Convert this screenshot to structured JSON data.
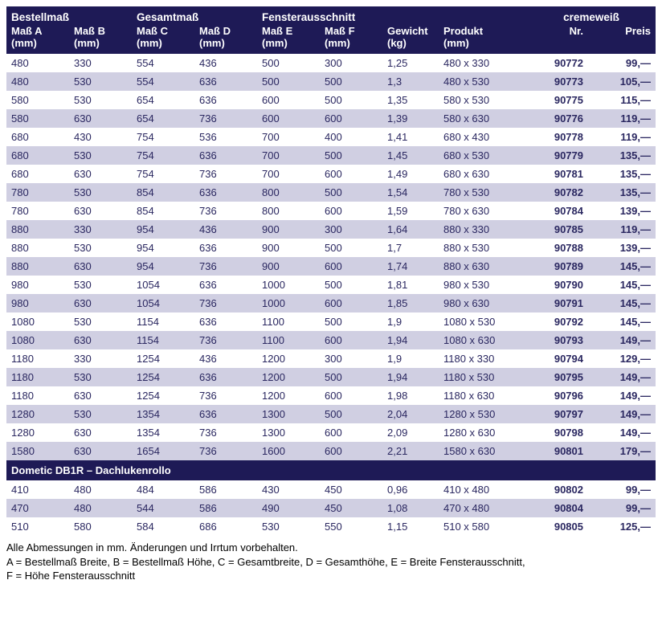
{
  "header_groups": {
    "bestellmass": "Bestellmaß",
    "gesamtmass": "Gesamtmaß",
    "fensterausschnitt": "Fensterausschnitt",
    "cremeweiss": "cremeweiß"
  },
  "columns": {
    "massA": "Maß A\n(mm)",
    "massB": "Maß B\n(mm)",
    "massC": "Maß C\n(mm)",
    "massD": "Maß D\n(mm)",
    "massE": "Maß E\n(mm)",
    "massF": "Maß F\n(mm)",
    "gewicht": "Gewicht\n(kg)",
    "produkt": "Produkt\n(mm)",
    "nr": "Nr.",
    "preis": "Preis"
  },
  "rows": [
    {
      "a": "480",
      "b": "330",
      "c": "554",
      "d": "436",
      "e": "500",
      "f": "300",
      "g": "1,25",
      "p": "480 x 330",
      "nr": "90772",
      "pr": "99,—"
    },
    {
      "a": "480",
      "b": "530",
      "c": "554",
      "d": "636",
      "e": "500",
      "f": "500",
      "g": "1,3",
      "p": "480 x 530",
      "nr": "90773",
      "pr": "105,—"
    },
    {
      "a": "580",
      "b": "530",
      "c": "654",
      "d": "636",
      "e": "600",
      "f": "500",
      "g": "1,35",
      "p": "580 x 530",
      "nr": "90775",
      "pr": "115,—"
    },
    {
      "a": "580",
      "b": "630",
      "c": "654",
      "d": "736",
      "e": "600",
      "f": "600",
      "g": "1,39",
      "p": "580 x 630",
      "nr": "90776",
      "pr": "119,—"
    },
    {
      "a": "680",
      "b": "430",
      "c": "754",
      "d": "536",
      "e": "700",
      "f": "400",
      "g": "1,41",
      "p": "680 x 430",
      "nr": "90778",
      "pr": "119,—"
    },
    {
      "a": "680",
      "b": "530",
      "c": "754",
      "d": "636",
      "e": "700",
      "f": "500",
      "g": "1,45",
      "p": "680 x 530",
      "nr": "90779",
      "pr": "135,—"
    },
    {
      "a": "680",
      "b": "630",
      "c": "754",
      "d": "736",
      "e": "700",
      "f": "600",
      "g": "1,49",
      "p": "680 x 630",
      "nr": "90781",
      "pr": "135,—"
    },
    {
      "a": "780",
      "b": "530",
      "c": "854",
      "d": "636",
      "e": "800",
      "f": "500",
      "g": "1,54",
      "p": "780 x 530",
      "nr": "90782",
      "pr": "135,—"
    },
    {
      "a": "780",
      "b": "630",
      "c": "854",
      "d": "736",
      "e": "800",
      "f": "600",
      "g": "1,59",
      "p": "780 x 630",
      "nr": "90784",
      "pr": "139,—"
    },
    {
      "a": "880",
      "b": "330",
      "c": "954",
      "d": "436",
      "e": "900",
      "f": "300",
      "g": "1,64",
      "p": "880 x 330",
      "nr": "90785",
      "pr": "119,—"
    },
    {
      "a": "880",
      "b": "530",
      "c": "954",
      "d": "636",
      "e": "900",
      "f": "500",
      "g": "1,7",
      "p": "880 x 530",
      "nr": "90788",
      "pr": "139,—"
    },
    {
      "a": "880",
      "b": "630",
      "c": "954",
      "d": "736",
      "e": "900",
      "f": "600",
      "g": "1,74",
      "p": "880 x 630",
      "nr": "90789",
      "pr": "145,—"
    },
    {
      "a": "980",
      "b": "530",
      "c": "1054",
      "d": "636",
      "e": "1000",
      "f": "500",
      "g": "1,81",
      "p": "980 x 530",
      "nr": "90790",
      "pr": "145,—"
    },
    {
      "a": "980",
      "b": "630",
      "c": "1054",
      "d": "736",
      "e": "1000",
      "f": "600",
      "g": "1,85",
      "p": "980 x 630",
      "nr": "90791",
      "pr": "145,—"
    },
    {
      "a": "1080",
      "b": "530",
      "c": "1154",
      "d": "636",
      "e": "1100",
      "f": "500",
      "g": "1,9",
      "p": "1080 x 530",
      "nr": "90792",
      "pr": "145,—"
    },
    {
      "a": "1080",
      "b": "630",
      "c": "1154",
      "d": "736",
      "e": "1100",
      "f": "600",
      "g": "1,94",
      "p": "1080 x 630",
      "nr": "90793",
      "pr": "149,—"
    },
    {
      "a": "1180",
      "b": "330",
      "c": "1254",
      "d": "436",
      "e": "1200",
      "f": "300",
      "g": "1,9",
      "p": "1180 x 330",
      "nr": "90794",
      "pr": "129,—"
    },
    {
      "a": "1180",
      "b": "530",
      "c": "1254",
      "d": "636",
      "e": "1200",
      "f": "500",
      "g": "1,94",
      "p": "1180 x 530",
      "nr": "90795",
      "pr": "149,—"
    },
    {
      "a": "1180",
      "b": "630",
      "c": "1254",
      "d": "736",
      "e": "1200",
      "f": "600",
      "g": "1,98",
      "p": "1180 x 630",
      "nr": "90796",
      "pr": "149,—"
    },
    {
      "a": "1280",
      "b": "530",
      "c": "1354",
      "d": "636",
      "e": "1300",
      "f": "500",
      "g": "2,04",
      "p": "1280 x 530",
      "nr": "90797",
      "pr": "149,—"
    },
    {
      "a": "1280",
      "b": "630",
      "c": "1354",
      "d": "736",
      "e": "1300",
      "f": "600",
      "g": "2,09",
      "p": "1280 x 630",
      "nr": "90798",
      "pr": "149,—"
    },
    {
      "a": "1580",
      "b": "630",
      "c": "1654",
      "d": "736",
      "e": "1600",
      "f": "600",
      "g": "2,21",
      "p": "1580 x 630",
      "nr": "90801",
      "pr": "179,—"
    }
  ],
  "section_title": "Dometic DB1R – Dachlukenrollo",
  "rows2": [
    {
      "a": "410",
      "b": "480",
      "c": "484",
      "d": "586",
      "e": "430",
      "f": "450",
      "g": "0,96",
      "p": "410 x 480",
      "nr": "90802",
      "pr": "99,—"
    },
    {
      "a": "470",
      "b": "480",
      "c": "544",
      "d": "586",
      "e": "490",
      "f": "450",
      "g": "1,08",
      "p": "470 x 480",
      "nr": "90804",
      "pr": "99,—"
    },
    {
      "a": "510",
      "b": "580",
      "c": "584",
      "d": "686",
      "e": "530",
      "f": "550",
      "g": "1,15",
      "p": "510 x 580",
      "nr": "90805",
      "pr": "125,—"
    }
  ],
  "footnotes": {
    "line1": "Alle Abmessungen in mm. Änderungen und Irrtum vorbehalten.",
    "line2": "A = Bestellmaß Breite, B = Bestellmaß Höhe, C = Gesamtbreite, D = Gesamthöhe, E = Breite Fensterausschnitt,",
    "line3": "F = Höhe Fensterausschnitt"
  }
}
